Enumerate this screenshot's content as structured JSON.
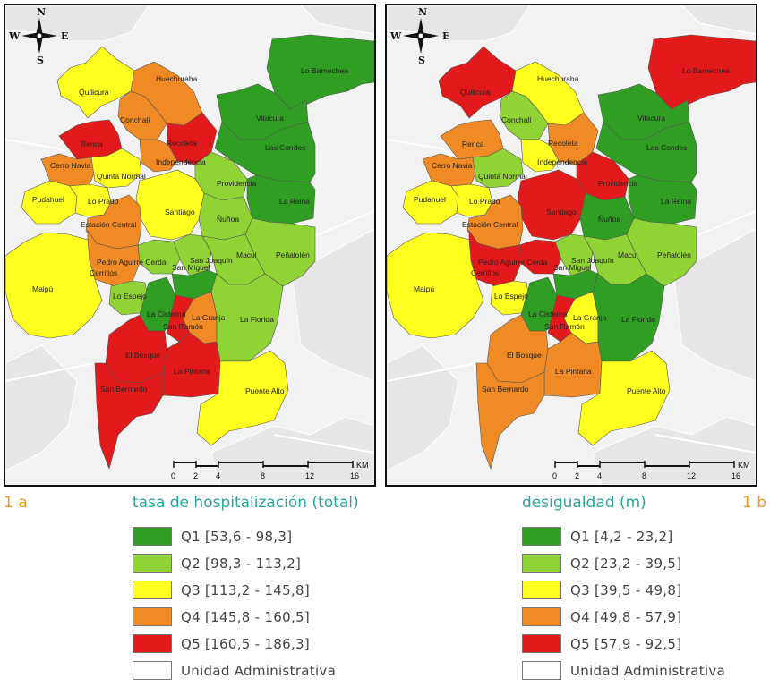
{
  "compass": {
    "n": "N",
    "s": "S",
    "e": "E",
    "w": "W"
  },
  "scale": {
    "ticks": [
      "0",
      "2",
      "4",
      "8",
      "12",
      "16"
    ],
    "unit": "KM"
  },
  "palette": {
    "q1": "#2f9e23",
    "q2": "#8fd334",
    "q3": "#ffff1f",
    "q4": "#f08a24",
    "q5": "#e31a1c",
    "admin": "#ffffff"
  },
  "comunas": [
    "Lo Barnechea",
    "Quilicura",
    "Huechuraba",
    "Conchalí",
    "Vitacura",
    "Recoleta",
    "Renca",
    "Las Condes",
    "Independencia",
    "Cerro Navia",
    "Quinta Normal",
    "Providencia",
    "Pudahuel",
    "Lo Prado",
    "Santiago",
    "La Reina",
    "Ñuñoa",
    "Estación Central",
    "Peñalolén",
    "Pedro Aguirre Cerda",
    "San Joaquín",
    "Macul",
    "Cerrillos",
    "San Miguel",
    "Maipú",
    "Lo Espejo",
    "La Cisterna",
    "La Granja",
    "San Ramón",
    "La Florida",
    "El Bosque",
    "La Pintana",
    "San Bernardo",
    "Puente Alto"
  ],
  "maps": [
    {
      "id": "1a",
      "label": "1 a",
      "title": "tasa de hospitalización (total)",
      "legend": [
        {
          "quintile": "q1",
          "text": "Q1 [53,6 - 98,3]"
        },
        {
          "quintile": "q2",
          "text": "Q2 [98,3 - 113,2]"
        },
        {
          "quintile": "q3",
          "text": "Q3 [113,2 - 145,8]"
        },
        {
          "quintile": "q4",
          "text": "Q4 [145,8 - 160,5]"
        },
        {
          "quintile": "q5",
          "text": "Q5 [160,5 - 186,3]"
        },
        {
          "quintile": "admin",
          "text": "Unidad Administrativa"
        }
      ],
      "classes": [
        "q1",
        "q3",
        "q4",
        "q4",
        "q1",
        "q5",
        "q5",
        "q1",
        "q4",
        "q4",
        "q3",
        "q2",
        "q3",
        "q3",
        "q3",
        "q1",
        "q2",
        "q4",
        "q2",
        "q2",
        "q2",
        "q2",
        "q4",
        "q1",
        "q3",
        "q2",
        "q1",
        "q4",
        "q5",
        "q2",
        "q5",
        "q5",
        "q5",
        "q3"
      ]
    },
    {
      "id": "1b",
      "label": "1 b",
      "title": "desigualdad (m)",
      "legend": [
        {
          "quintile": "q1",
          "text": "Q1 [4,2 - 23,2]"
        },
        {
          "quintile": "q2",
          "text": "Q2 [23,2 - 39,5]"
        },
        {
          "quintile": "q3",
          "text": "Q3 [39,5 - 49,8]"
        },
        {
          "quintile": "q4",
          "text": "Q4 [49,8 - 57,9]"
        },
        {
          "quintile": "q5",
          "text": "Q5 [57,9 - 92,5]"
        },
        {
          "quintile": "admin",
          "text": "Unidad Administrativa"
        }
      ],
      "classes": [
        "q5",
        "q5",
        "q3",
        "q2",
        "q1",
        "q4",
        "q4",
        "q1",
        "q3",
        "q4",
        "q2",
        "q5",
        "q3",
        "q3",
        "q5",
        "q1",
        "q1",
        "q4",
        "q2",
        "q5",
        "q2",
        "q2",
        "q5",
        "q1",
        "q3",
        "q3",
        "q1",
        "q3",
        "q5",
        "q1",
        "q4",
        "q4",
        "q4",
        "q3"
      ]
    }
  ]
}
